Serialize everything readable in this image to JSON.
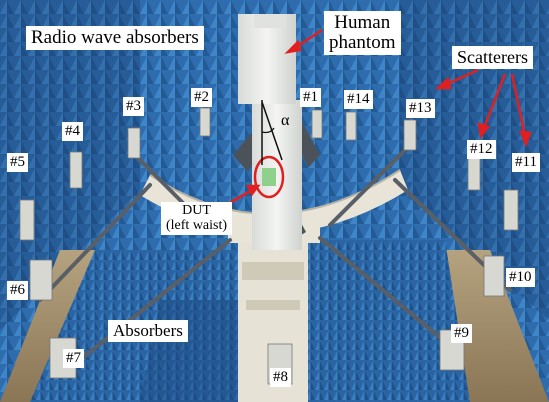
{
  "labels": {
    "radio_wave_absorbers": "Radio wave absorbers",
    "human_phantom_line1": "Human",
    "human_phantom_line2": "phantom",
    "scatterers": "Scatterers",
    "alpha": "α",
    "dut_line1": "DUT",
    "dut_line2": "(left waist)",
    "absorbers": "Absorbers"
  },
  "antennas": [
    "#1",
    "#2",
    "#3",
    "#4",
    "#5",
    "#6",
    "#7",
    "#8",
    "#9",
    "#10",
    "#11",
    "#12",
    "#13",
    "#14"
  ],
  "colors": {
    "absorber_blue": "#2f6fb0",
    "absorber_dark": "#1a3f6e",
    "phantom_white": "#eef0ee",
    "arrow_red": "#e02020",
    "rod_gray": "#5a5f66",
    "frame_white": "#e8e4d8"
  }
}
